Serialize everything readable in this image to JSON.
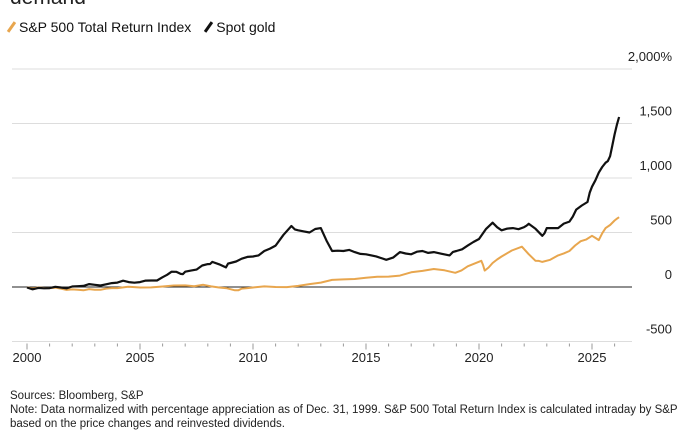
{
  "title_fragment": "demand",
  "chart_data": {
    "type": "line",
    "title": "",
    "xlabel": "",
    "ylabel": "",
    "y_unit": "%",
    "xlim": [
      2000,
      2026.5
    ],
    "ylim": [
      -500,
      2000
    ],
    "x_ticks": [
      "2000",
      "2005",
      "2010",
      "2015",
      "2020",
      "2025"
    ],
    "y_ticks": [
      "2,000%",
      "1,500",
      "1,000",
      "500",
      "0",
      "-500"
    ],
    "grid": true,
    "legend_position": "top-left",
    "series": [
      {
        "name": "S&P 500 Total Return Index",
        "color": "#e8a64e",
        "x": [
          2000,
          2000.5,
          2001,
          2001.5,
          2002,
          2002.5,
          2003,
          2003.5,
          2004,
          2005,
          2006,
          2007,
          2007.8,
          2008.5,
          2009.2,
          2009.5,
          2010,
          2011,
          2012,
          2013,
          2014,
          2015,
          2016,
          2017,
          2018,
          2018.95,
          2019.5,
          2020.1,
          2020.25,
          2020.6,
          2021,
          2021.9,
          2022.5,
          2022.8,
          2023.5,
          2024,
          2024.5,
          2025,
          2025.3,
          2025.6,
          2026,
          2026.2
        ],
        "values": [
          -3,
          -5,
          -10,
          -15,
          -22,
          -30,
          -25,
          -15,
          -10,
          -5,
          5,
          15,
          20,
          -5,
          -30,
          -15,
          -5,
          0,
          10,
          40,
          70,
          85,
          95,
          135,
          165,
          130,
          190,
          240,
          150,
          220,
          280,
          370,
          240,
          230,
          290,
          330,
          420,
          470,
          430,
          540,
          610,
          640
        ]
      },
      {
        "name": "Spot gold",
        "color": "#111111",
        "x": [
          2000,
          2000.5,
          2001,
          2001.5,
          2002,
          2002.5,
          2003,
          2003.5,
          2004,
          2004.5,
          2005,
          2005.5,
          2006,
          2006.4,
          2006.8,
          2007,
          2007.5,
          2008,
          2008.2,
          2008.8,
          2009,
          2009.5,
          2010,
          2010.5,
          2011,
          2011.7,
          2012,
          2012.5,
          2013,
          2013.5,
          2014,
          2014.5,
          2015,
          2015.9,
          2016.5,
          2017,
          2017.5,
          2018,
          2018.7,
          2019,
          2019.5,
          2020,
          2020.6,
          2021,
          2021.5,
          2022,
          2022.2,
          2022.8,
          2023,
          2023.5,
          2024,
          2024.3,
          2024.8,
          2025,
          2025.3,
          2025.6,
          2025.8,
          2026,
          2026.2
        ],
        "values": [
          -5,
          -8,
          -10,
          -5,
          5,
          10,
          20,
          25,
          40,
          45,
          45,
          60,
          90,
          140,
          120,
          140,
          160,
          210,
          230,
          180,
          220,
          260,
          280,
          330,
          380,
          560,
          520,
          500,
          540,
          330,
          330,
          320,
          300,
          250,
          320,
          300,
          330,
          320,
          290,
          330,
          380,
          440,
          590,
          520,
          540,
          550,
          580,
          470,
          540,
          540,
          600,
          710,
          780,
          920,
          1050,
          1140,
          1200,
          1400,
          1560
        ]
      }
    ]
  },
  "sources": "Sources: Bloomberg, S&P",
  "note": "Note: Data normalized with percentage appreciation as of Dec. 31, 1999. S&P 500 Total Return Index is calculated intraday by S&P based on the price changes and reinvested dividends."
}
